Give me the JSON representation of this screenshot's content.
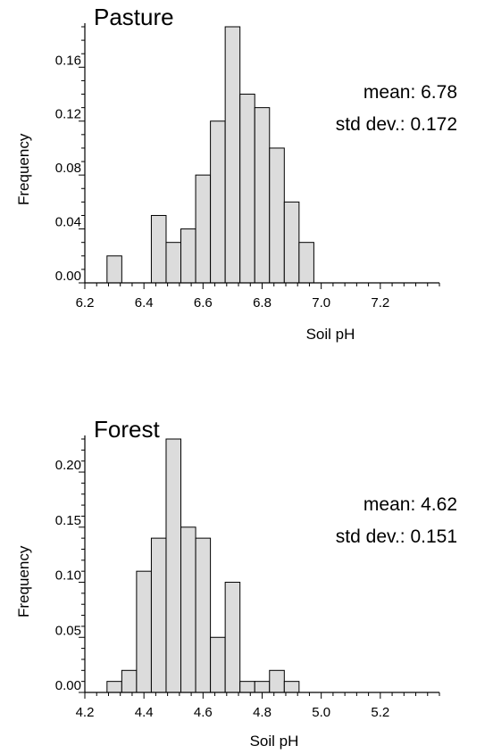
{
  "chart_data": [
    {
      "type": "bar",
      "title": "Pasture",
      "xlabel": "Soil pH",
      "ylabel": "Frequency",
      "bin_width": 0.05,
      "bins": [
        {
          "x": 6.3,
          "y": 0.02
        },
        {
          "x": 6.35,
          "y": 0.0
        },
        {
          "x": 6.4,
          "y": 0.0
        },
        {
          "x": 6.45,
          "y": 0.05
        },
        {
          "x": 6.5,
          "y": 0.03
        },
        {
          "x": 6.55,
          "y": 0.04
        },
        {
          "x": 6.6,
          "y": 0.08
        },
        {
          "x": 6.65,
          "y": 0.12
        },
        {
          "x": 6.7,
          "y": 0.19
        },
        {
          "x": 6.75,
          "y": 0.14
        },
        {
          "x": 6.8,
          "y": 0.13
        },
        {
          "x": 6.85,
          "y": 0.1
        },
        {
          "x": 6.9,
          "y": 0.06
        },
        {
          "x": 6.95,
          "y": 0.03
        }
      ],
      "xlim": [
        6.2,
        7.4
      ],
      "ylim": [
        0,
        0.19
      ],
      "x_ticks": [
        "6.2",
        "6.4",
        "6.6",
        "6.8",
        "7.0",
        "7.2"
      ],
      "y_ticks": [
        "0.00",
        "0.04",
        "0.08",
        "0.12",
        "0.16"
      ],
      "annotations": [
        "mean: 6.78",
        "std dev.: 0.172"
      ]
    },
    {
      "type": "bar",
      "title": "Forest",
      "xlabel": "Soil pH",
      "ylabel": "Frequency",
      "bin_width": 0.05,
      "bins": [
        {
          "x": 4.3,
          "y": 0.01
        },
        {
          "x": 4.35,
          "y": 0.02
        },
        {
          "x": 4.4,
          "y": 0.11
        },
        {
          "x": 4.45,
          "y": 0.14
        },
        {
          "x": 4.5,
          "y": 0.23
        },
        {
          "x": 4.55,
          "y": 0.15
        },
        {
          "x": 4.6,
          "y": 0.14
        },
        {
          "x": 4.65,
          "y": 0.05
        },
        {
          "x": 4.7,
          "y": 0.1
        },
        {
          "x": 4.75,
          "y": 0.01
        },
        {
          "x": 4.8,
          "y": 0.01
        },
        {
          "x": 4.85,
          "y": 0.02
        },
        {
          "x": 4.9,
          "y": 0.01
        }
      ],
      "xlim": [
        4.2,
        5.4
      ],
      "ylim": [
        0,
        0.23
      ],
      "x_ticks": [
        "4.2",
        "4.4",
        "4.6",
        "4.8",
        "5.0",
        "5.2"
      ],
      "y_ticks": [
        "0.00",
        "0.05",
        "0.10",
        "0.15",
        "0.20"
      ],
      "annotations": [
        "mean: 4.62",
        "std dev.: 0.151"
      ]
    }
  ]
}
